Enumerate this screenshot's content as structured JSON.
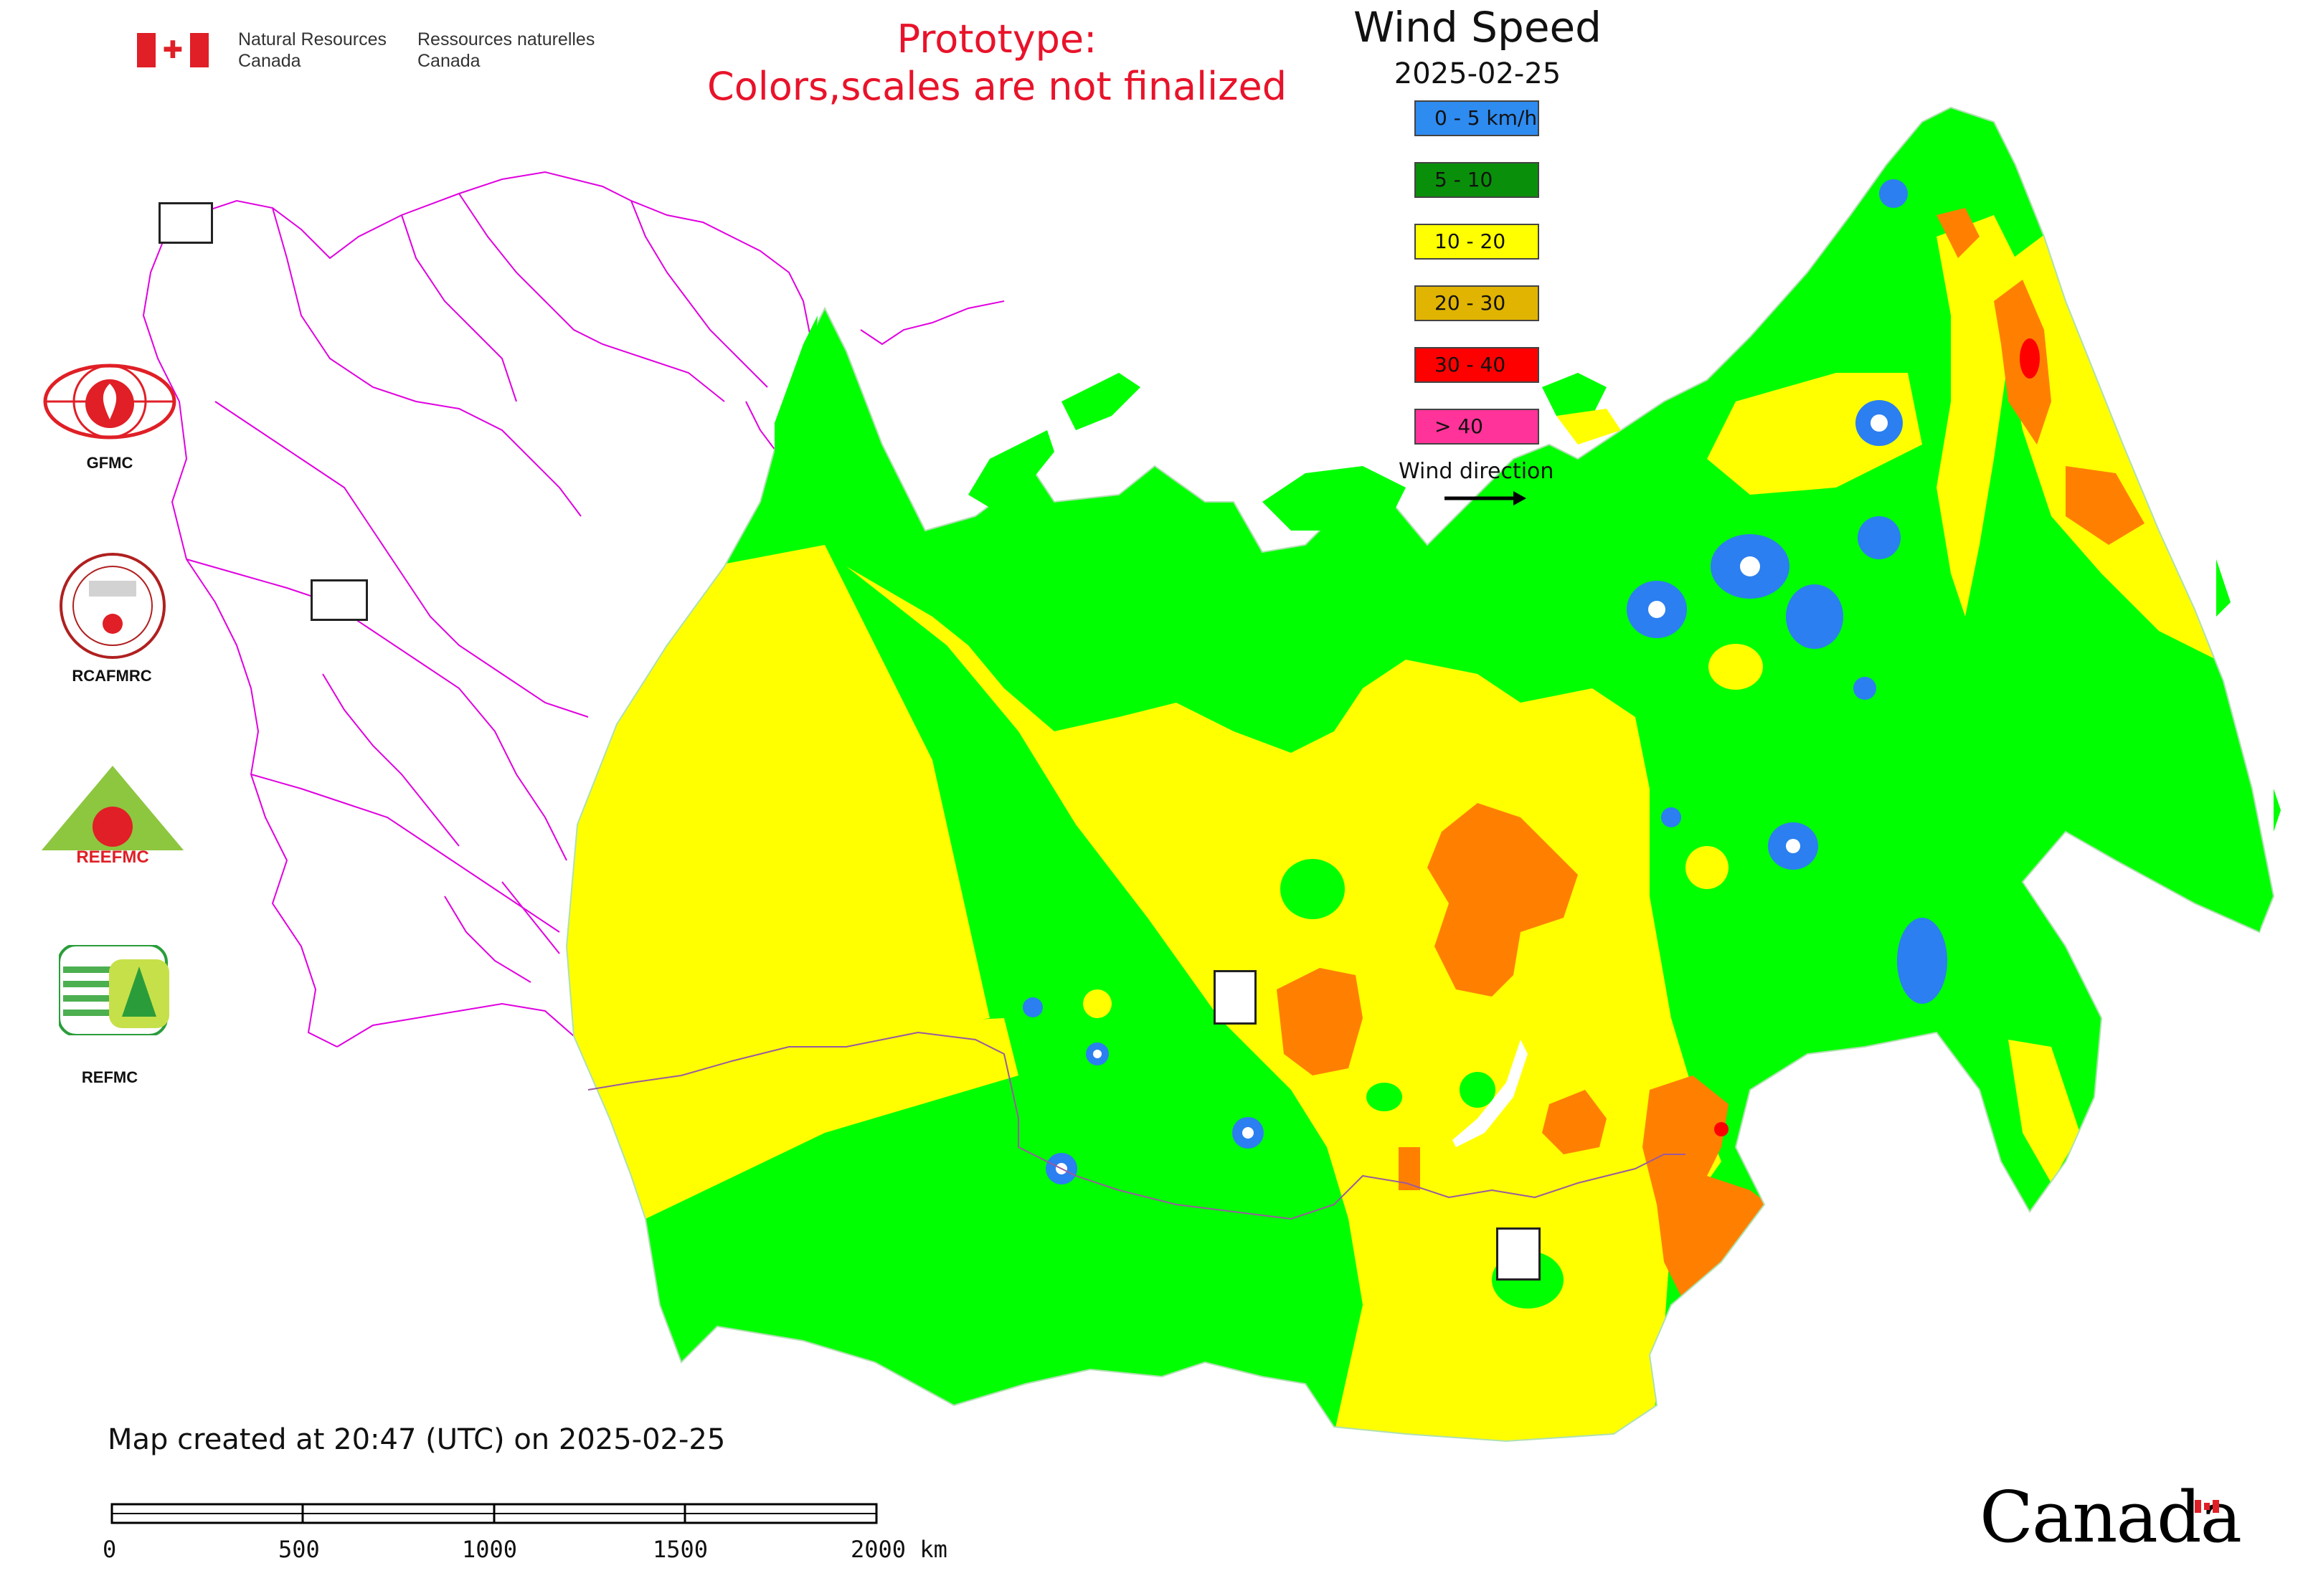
{
  "header": {
    "agency_en_1": "Natural Resources",
    "agency_en_2": "Canada",
    "agency_fr_1": "Ressources naturelles",
    "agency_fr_2": "Canada",
    "prototype_line1": "Prototype:",
    "prototype_line2": "Colors,scales are not finalized"
  },
  "legend": {
    "title": "Wind Speed",
    "date": "2025-02-25",
    "classes": [
      {
        "label": "0 - 5 km/h",
        "color": "#2e8bf0"
      },
      {
        "label": "5 - 10",
        "color": "#0a8f0a"
      },
      {
        "label": "10 - 20",
        "color": "#ffff00"
      },
      {
        "label": "20 - 30",
        "color": "#e0b400"
      },
      {
        "label": "30 - 40",
        "color": "#ff0000"
      },
      {
        "label": "> 40",
        "color": "#ff3399"
      }
    ],
    "direction_label": "Wind direction"
  },
  "organizations": [
    {
      "name": "GFMC"
    },
    {
      "name": "RCAFMRC"
    },
    {
      "name": "REEFMC"
    },
    {
      "name": "REFMC"
    }
  ],
  "footer": {
    "created_note": "Map created at 20:47 (UTC) on 2025-02-25",
    "scale_ticks": [
      "0",
      "500",
      "1000",
      "1500",
      "2000 km"
    ],
    "wordmark": "Canada"
  },
  "map_colors": {
    "light_green": "#00ff00",
    "yellow": "#ffff00",
    "orange": "#ff8000",
    "blue": "#2b7ff0",
    "red": "#ff0000",
    "boundary": "#e000e0"
  }
}
